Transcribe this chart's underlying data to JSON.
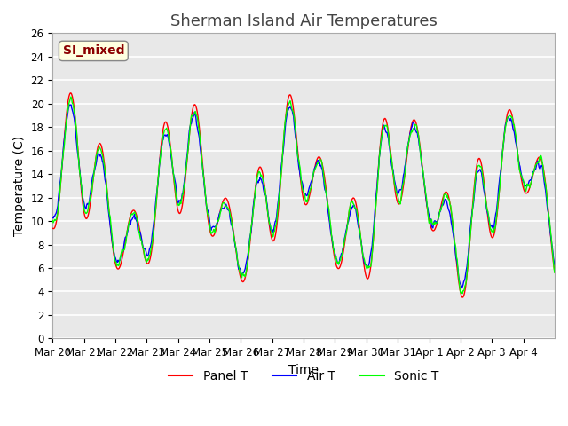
{
  "title": "Sherman Island Air Temperatures",
  "xlabel": "Time",
  "ylabel": "Temperature (C)",
  "ylim": [
    0,
    26
  ],
  "yticks": [
    0,
    2,
    4,
    6,
    8,
    10,
    12,
    14,
    16,
    18,
    20,
    22,
    24,
    26
  ],
  "xtick_labels": [
    "Mar 20",
    "Mar 21",
    "Mar 22",
    "Mar 23",
    "Mar 24",
    "Mar 25",
    "Mar 26",
    "Mar 27",
    "Mar 28",
    "Mar 29",
    "Mar 30",
    "Mar 31",
    "Apr 1",
    "Apr 2",
    "Apr 3",
    "Apr 4"
  ],
  "legend_labels": [
    "Panel T",
    "Air T",
    "Sonic T"
  ],
  "line_colors": [
    "red",
    "blue",
    "lime"
  ],
  "annotation_text": "SI_mixed",
  "annotation_color": "darkred",
  "annotation_bg": "lightyellow",
  "background_color": "#e8e8e8",
  "grid_color": "white",
  "title_fontsize": 13,
  "axis_fontsize": 10,
  "tick_fontsize": 8.5
}
